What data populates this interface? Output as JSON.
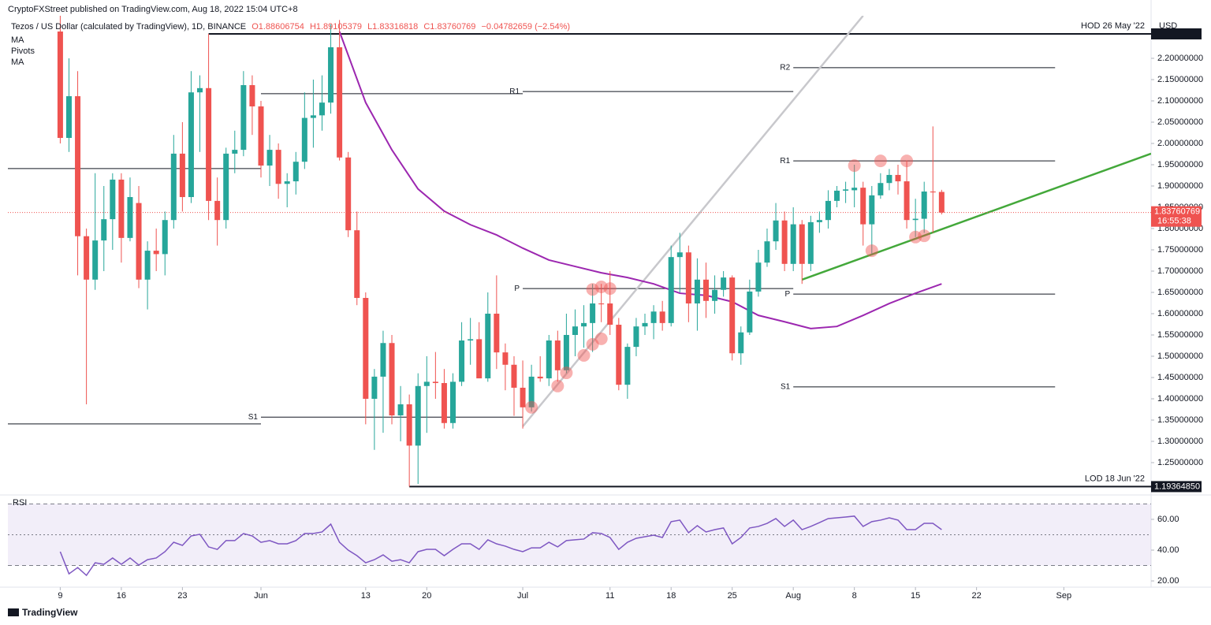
{
  "chart_data": {
    "type": "candlestick",
    "publisher": "CryptoFXStreet published on TradingView.com, Aug 18, 2022 15:04 UTC+8",
    "title": "Tezos / US Dollar (calculated by TradingView), 1D, BINANCE",
    "ohlc_text": [
      "O1.88606754",
      "H1.89105379",
      "L1.83316818",
      "C1.83760769",
      "−0.04782659 (−2.54%)"
    ],
    "indicators": [
      "MA",
      "Pivots",
      "MA"
    ],
    "currency": "USD",
    "footer": "TradingView",
    "up_color": "#26a69a",
    "down_color": "#ef5350",
    "x": [
      "2022-05-09",
      "2022-05-10",
      "2022-05-11",
      "2022-05-12",
      "2022-05-13",
      "2022-05-14",
      "2022-05-15",
      "2022-05-16",
      "2022-05-17",
      "2022-05-18",
      "2022-05-19",
      "2022-05-20",
      "2022-05-21",
      "2022-05-22",
      "2022-05-23",
      "2022-05-24",
      "2022-05-25",
      "2022-05-26",
      "2022-05-27",
      "2022-05-28",
      "2022-05-29",
      "2022-05-30",
      "2022-05-31",
      "2022-06-01",
      "2022-06-02",
      "2022-06-03",
      "2022-06-04",
      "2022-06-05",
      "2022-06-06",
      "2022-06-07",
      "2022-06-08",
      "2022-06-09",
      "2022-06-10",
      "2022-06-11",
      "2022-06-12",
      "2022-06-13",
      "2022-06-14",
      "2022-06-15",
      "2022-06-16",
      "2022-06-17",
      "2022-06-18",
      "2022-06-19",
      "2022-06-20",
      "2022-06-21",
      "2022-06-22",
      "2022-06-23",
      "2022-06-24",
      "2022-06-25",
      "2022-06-26",
      "2022-06-27",
      "2022-06-28",
      "2022-06-29",
      "2022-06-30",
      "2022-07-01",
      "2022-07-02",
      "2022-07-03",
      "2022-07-04",
      "2022-07-05",
      "2022-07-06",
      "2022-07-07",
      "2022-07-08",
      "2022-07-09",
      "2022-07-10",
      "2022-07-11",
      "2022-07-12",
      "2022-07-13",
      "2022-07-14",
      "2022-07-15",
      "2022-07-16",
      "2022-07-17",
      "2022-07-18",
      "2022-07-19",
      "2022-07-20",
      "2022-07-21",
      "2022-07-22",
      "2022-07-23",
      "2022-07-24",
      "2022-07-25",
      "2022-07-26",
      "2022-07-27",
      "2022-07-28",
      "2022-07-29",
      "2022-07-30",
      "2022-07-31",
      "2022-08-01",
      "2022-08-02",
      "2022-08-03",
      "2022-08-04",
      "2022-08-05",
      "2022-08-06",
      "2022-08-07",
      "2022-08-08",
      "2022-08-09",
      "2022-08-10",
      "2022-08-11",
      "2022-08-12",
      "2022-08-13",
      "2022-08-14",
      "2022-08-15",
      "2022-08-16",
      "2022-08-17",
      "2022-08-18"
    ],
    "open": [
      2.263,
      2.013,
      2.111,
      1.782,
      1.68,
      1.772,
      1.822,
      1.915,
      1.778,
      1.86,
      1.68,
      1.748,
      1.74,
      1.82,
      1.976,
      1.874,
      2.12,
      2.13,
      1.865,
      1.82,
      1.976,
      1.985,
      2.137,
      2.087,
      1.948,
      1.985,
      1.905,
      1.911,
      1.957,
      2.06,
      2.066,
      2.096,
      2.226,
      1.967,
      1.796,
      1.637,
      1.4,
      1.452,
      1.531,
      1.361,
      1.387,
      1.29,
      1.43,
      1.44,
      1.437,
      1.343,
      1.44,
      1.537,
      1.54,
      1.448,
      1.6,
      1.509,
      1.48,
      1.426,
      1.38,
      1.452,
      1.448,
      1.537,
      1.467,
      1.55,
      1.57,
      1.578,
      1.624,
      1.624,
      1.574,
      1.433,
      1.522,
      1.57,
      1.578,
      1.605,
      1.578,
      1.733,
      1.744,
      1.624,
      1.68,
      1.63,
      1.656,
      1.685,
      1.507,
      1.556,
      1.652,
      1.72,
      1.77,
      1.819,
      1.717,
      1.81,
      1.717,
      1.815,
      1.82,
      1.865,
      1.889,
      1.89,
      1.896,
      1.81,
      1.878,
      1.907,
      1.926,
      1.911,
      1.82,
      1.823,
      1.887,
      1.88606754
    ],
    "high": [
      2.3,
      2.2,
      2.17,
      1.8,
      1.93,
      1.9,
      1.93,
      1.93,
      1.92,
      1.9,
      1.77,
      1.8,
      1.84,
      2.02,
      2.05,
      2.17,
      2.16,
      2.2574,
      1.92,
      1.99,
      2.03,
      2.17,
      2.16,
      2.1,
      2.02,
      2.0,
      1.93,
      1.98,
      2.12,
      2.15,
      2.16,
      2.28,
      2.29,
      1.98,
      1.84,
      1.65,
      1.47,
      1.56,
      1.55,
      1.43,
      1.41,
      1.46,
      1.5,
      1.51,
      1.47,
      1.46,
      1.58,
      1.59,
      1.58,
      1.65,
      1.69,
      1.53,
      1.5,
      1.49,
      1.48,
      1.5,
      1.55,
      1.56,
      1.6,
      1.61,
      1.62,
      1.67,
      1.67,
      1.7,
      1.59,
      1.53,
      1.59,
      1.6,
      1.62,
      1.63,
      1.76,
      1.79,
      1.76,
      1.73,
      1.72,
      1.69,
      1.7,
      1.69,
      1.57,
      1.68,
      1.75,
      1.8,
      1.86,
      1.84,
      1.85,
      1.82,
      1.83,
      1.84,
      1.89,
      1.9,
      1.91,
      1.95,
      1.91,
      1.9,
      1.93,
      1.94,
      1.95,
      1.96,
      1.87,
      1.91,
      2.04,
      1.89105379
    ],
    "low": [
      2.0,
      1.98,
      1.69,
      1.387,
      1.656,
      1.7,
      1.75,
      1.72,
      1.77,
      1.66,
      1.61,
      1.7,
      1.69,
      1.8,
      1.84,
      1.86,
      1.98,
      1.82,
      1.76,
      1.8,
      1.93,
      1.97,
      2.02,
      1.92,
      1.9,
      1.87,
      1.85,
      1.88,
      1.94,
      1.99,
      2.03,
      2.07,
      1.96,
      1.78,
      1.62,
      1.34,
      1.28,
      1.32,
      1.34,
      1.3,
      1.1936485,
      1.2,
      1.32,
      1.4,
      1.33,
      1.33,
      1.43,
      1.48,
      1.45,
      1.44,
      1.47,
      1.42,
      1.36,
      1.33,
      1.37,
      1.44,
      1.43,
      1.44,
      1.46,
      1.5,
      1.52,
      1.51,
      1.58,
      1.55,
      1.42,
      1.4,
      1.5,
      1.55,
      1.54,
      1.56,
      1.57,
      1.65,
      1.58,
      1.56,
      1.59,
      1.6,
      1.64,
      1.49,
      1.48,
      1.55,
      1.64,
      1.71,
      1.75,
      1.7,
      1.7,
      1.67,
      1.7,
      1.79,
      1.8,
      1.85,
      1.86,
      1.85,
      1.76,
      1.74,
      1.87,
      1.89,
      1.88,
      1.8,
      1.78,
      1.79,
      1.79,
      1.83316818
    ],
    "close": [
      2.013,
      2.111,
      1.782,
      1.68,
      1.772,
      1.822,
      1.915,
      1.778,
      1.874,
      1.68,
      1.748,
      1.74,
      1.82,
      1.976,
      1.874,
      2.12,
      2.13,
      1.865,
      1.82,
      1.976,
      1.985,
      2.137,
      2.087,
      1.948,
      1.985,
      1.905,
      1.911,
      1.957,
      2.06,
      2.066,
      2.096,
      2.226,
      1.967,
      1.796,
      1.637,
      1.4,
      1.452,
      1.531,
      1.361,
      1.387,
      1.29,
      1.43,
      1.44,
      1.437,
      1.343,
      1.44,
      1.537,
      1.54,
      1.448,
      1.6,
      1.509,
      1.48,
      1.426,
      1.38,
      1.452,
      1.448,
      1.537,
      1.467,
      1.55,
      1.57,
      1.578,
      1.624,
      1.622,
      1.574,
      1.433,
      1.522,
      1.57,
      1.578,
      1.605,
      1.578,
      1.733,
      1.744,
      1.624,
      1.68,
      1.63,
      1.656,
      1.685,
      1.507,
      1.556,
      1.652,
      1.72,
      1.77,
      1.819,
      1.717,
      1.81,
      1.717,
      1.815,
      1.82,
      1.865,
      1.889,
      1.892,
      1.896,
      1.81,
      1.878,
      1.907,
      1.926,
      1.911,
      1.82,
      1.823,
      1.887,
      1.885,
      1.83760769
    ],
    "xlim": [
      "2022-05-03",
      "2022-09-11"
    ],
    "xticks": [
      {
        "value": "2022-05-09",
        "label": "9"
      },
      {
        "value": "2022-05-16",
        "label": "16"
      },
      {
        "value": "2022-05-23",
        "label": "23"
      },
      {
        "value": "2022-06-01",
        "label": "Jun"
      },
      {
        "value": "2022-06-13",
        "label": "13"
      },
      {
        "value": "2022-06-20",
        "label": "20"
      },
      {
        "value": "2022-07-01",
        "label": "Jul"
      },
      {
        "value": "2022-07-11",
        "label": "11"
      },
      {
        "value": "2022-07-18",
        "label": "18"
      },
      {
        "value": "2022-07-25",
        "label": "25"
      },
      {
        "value": "2022-08-01",
        "label": "Aug"
      },
      {
        "value": "2022-08-08",
        "label": "8"
      },
      {
        "value": "2022-08-15",
        "label": "15"
      },
      {
        "value": "2022-08-22",
        "label": "22"
      },
      {
        "value": "2022-09-01",
        "label": "Sep"
      }
    ],
    "ylim": [
      1.1796,
      2.3
    ],
    "yticks": [
      {
        "value": 2.2,
        "label": "2.20000000"
      },
      {
        "value": 2.15,
        "label": "2.15000000"
      },
      {
        "value": 2.1,
        "label": "2.10000000"
      },
      {
        "value": 2.05,
        "label": "2.05000000"
      },
      {
        "value": 2.0,
        "label": "2.00000000"
      },
      {
        "value": 1.95,
        "label": "1.95000000"
      },
      {
        "value": 1.9,
        "label": "1.90000000"
      },
      {
        "value": 1.85,
        "label": "1.85000000"
      },
      {
        "value": 1.8,
        "label": "1.80000000"
      },
      {
        "value": 1.75,
        "label": "1.75000000"
      },
      {
        "value": 1.7,
        "label": "1.70000000"
      },
      {
        "value": 1.65,
        "label": "1.65000000"
      },
      {
        "value": 1.6,
        "label": "1.60000000"
      },
      {
        "value": 1.55,
        "label": "1.55000000"
      },
      {
        "value": 1.5,
        "label": "1.50000000"
      },
      {
        "value": 1.45,
        "label": "1.45000000"
      },
      {
        "value": 1.4,
        "label": "1.40000000"
      },
      {
        "value": 1.35,
        "label": "1.35000000"
      },
      {
        "value": 1.3,
        "label": "1.30000000"
      },
      {
        "value": 1.25,
        "label": "1.25000000"
      }
    ],
    "last_price": {
      "value": 1.83760769,
      "label": "1.83760769",
      "countdown": "16:55:38"
    },
    "levels": [
      {
        "name": "HOD 26 May '22",
        "value": 2.2574,
        "start": "2022-05-26",
        "end": "2022-09-11"
      },
      {
        "name": "LOD 18 Jun '22",
        "value": 1.1936485,
        "label": "1.19364850",
        "start": "2022-06-18",
        "end": "2022-09-11"
      }
    ],
    "ma": {
      "color": "#9c27b0",
      "x": [
        "2022-06-10",
        "2022-06-13",
        "2022-06-16",
        "2022-06-19",
        "2022-06-22",
        "2022-06-25",
        "2022-06-28",
        "2022-07-01",
        "2022-07-04",
        "2022-07-07",
        "2022-07-10",
        "2022-07-13",
        "2022-07-16",
        "2022-07-19",
        "2022-07-22",
        "2022-07-25",
        "2022-07-28",
        "2022-07-31",
        "2022-08-03",
        "2022-08-06",
        "2022-08-09",
        "2022-08-12",
        "2022-08-15",
        "2022-08-18"
      ],
      "values": [
        2.263,
        2.096,
        1.985,
        1.893,
        1.841,
        1.809,
        1.785,
        1.754,
        1.726,
        1.711,
        1.696,
        1.685,
        1.67,
        1.648,
        1.643,
        1.628,
        1.596,
        1.581,
        1.565,
        1.57,
        1.596,
        1.624,
        1.648,
        1.67
      ]
    },
    "pivots": [
      {
        "value": 1.941,
        "start": "2022-05-03",
        "end": "2022-06-01"
      },
      {
        "value": 1.341,
        "start": "2022-05-03",
        "end": "2022-06-01"
      },
      {
        "value": 2.117,
        "start": "2022-06-01",
        "end": "2022-07-01"
      },
      {
        "label": "S1",
        "value": 1.357,
        "start": "2022-06-01",
        "end": "2022-07-01"
      },
      {
        "label": "R1",
        "value": 2.122,
        "start": "2022-07-01",
        "end": "2022-08-01"
      },
      {
        "label": "P",
        "value": 1.659,
        "start": "2022-07-01",
        "end": "2022-08-01"
      },
      {
        "label": "R2",
        "value": 2.178,
        "start": "2022-08-01",
        "end": "2022-08-31"
      },
      {
        "label": "R1",
        "value": 1.959,
        "start": "2022-08-01",
        "end": "2022-08-31"
      },
      {
        "label": "P",
        "value": 1.646,
        "start": "2022-08-01",
        "end": "2022-08-31"
      },
      {
        "label": "S1",
        "value": 1.428,
        "start": "2022-08-01",
        "end": "2022-08-31"
      }
    ],
    "trendlines": [
      {
        "color": "#c8c8cc",
        "x": [
          "2022-07-01",
          "2022-08-09"
        ],
        "values": [
          1.335,
          2.3
        ]
      },
      {
        "color": "#43a83a",
        "x": [
          "2022-08-02",
          "2022-09-11"
        ],
        "values": [
          1.68,
          1.976
        ]
      }
    ],
    "markers": {
      "color": "rgba(239,83,80,0.45)",
      "x": [
        "2022-07-02",
        "2022-07-05",
        "2022-07-06",
        "2022-07-08",
        "2022-07-09",
        "2022-07-10",
        "2022-07-09",
        "2022-07-10",
        "2022-07-11",
        "2022-08-08",
        "2022-08-11",
        "2022-08-14",
        "2022-08-10",
        "2022-08-15",
        "2022-08-16"
      ],
      "values": [
        1.38,
        1.43,
        1.461,
        1.502,
        1.528,
        1.541,
        1.657,
        1.663,
        1.659,
        1.948,
        1.959,
        1.959,
        1.748,
        1.78,
        1.783
      ]
    },
    "rsi": {
      "title": "RSI",
      "color": "#7e57c2",
      "values": [
        39,
        24.6,
        28.7,
        23.6,
        31.8,
        30.8,
        34.9,
        30.8,
        34.9,
        30.3,
        33.8,
        34.9,
        39,
        45.1,
        43.1,
        49.2,
        50.3,
        42.1,
        40.5,
        46.2,
        46.2,
        50.8,
        49.2,
        45.1,
        46.2,
        44.1,
        44.1,
        46.2,
        50.8,
        50.8,
        51.8,
        56.9,
        45.1,
        40,
        36.4,
        31.8,
        33.8,
        36.9,
        32.8,
        33.8,
        31.8,
        39,
        40.5,
        40.5,
        36.4,
        40.5,
        44.1,
        44.1,
        40.5,
        46.7,
        44.1,
        42.6,
        40.5,
        39,
        41.5,
        41.5,
        45.1,
        42.1,
        46.2,
        46.7,
        47.2,
        51.3,
        50.8,
        48.2,
        40.5,
        45.1,
        47.7,
        48.7,
        49.7,
        48.2,
        58.5,
        59.5,
        51.3,
        55.9,
        51.8,
        53.3,
        54.4,
        44.1,
        48.2,
        54.4,
        55.4,
        57.4,
        60.5,
        55.4,
        59.5,
        53.3,
        55.4,
        57.9,
        60.5,
        61,
        61.5,
        62.1,
        55.4,
        58.5,
        59.5,
        61,
        59.5,
        53.3,
        53.3,
        57.4,
        57.4,
        53.3
      ],
      "ylim": [
        18.5,
        73.8
      ],
      "yticks": [
        {
          "value": 60,
          "label": "60.00"
        },
        {
          "value": 40,
          "label": "40.00"
        },
        {
          "value": 20,
          "label": "20.00"
        }
      ],
      "levels": [
        70,
        50,
        30
      ]
    }
  }
}
